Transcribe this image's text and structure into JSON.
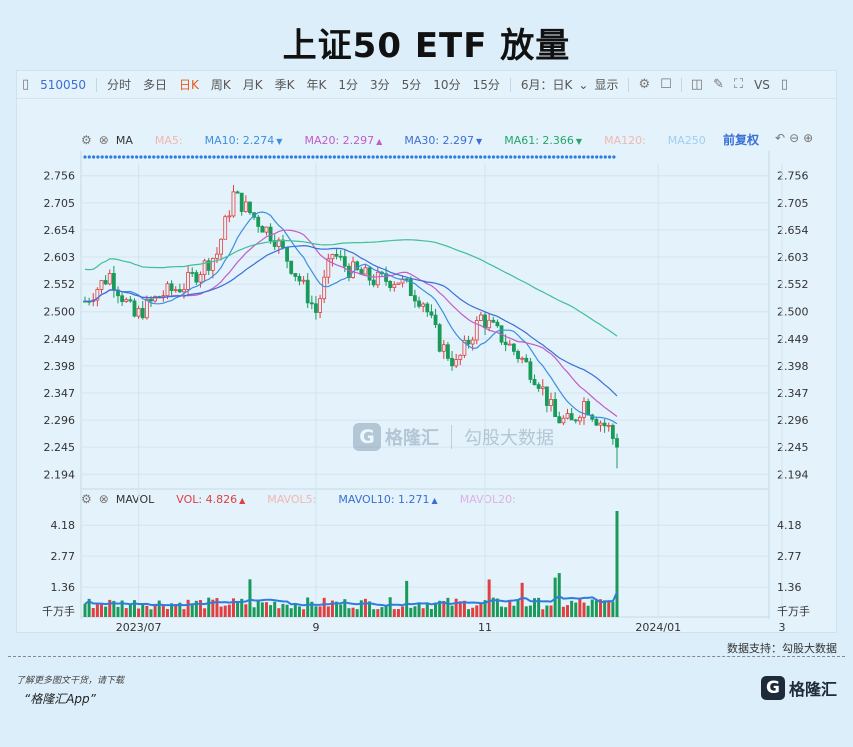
{
  "title": "上证50 ETF 放量",
  "toolbar": {
    "code": "510050",
    "periods": [
      "分时",
      "多日",
      "日K",
      "周K",
      "月K",
      "季K",
      "年K",
      "1分",
      "3分",
      "5分",
      "10分",
      "15分"
    ],
    "active_period": "日K",
    "range": "6月：日K",
    "display": "显示",
    "vs": "VS"
  },
  "indicators_top": {
    "name": "MA",
    "items": [
      {
        "label": "MA5:",
        "value": "",
        "color": "#f2b7b0",
        "arrow": ""
      },
      {
        "label": "MA10:",
        "value": "2.274",
        "color": "#3a8fe0",
        "arrow": "▼"
      },
      {
        "label": "MA20:",
        "value": "2.297",
        "color": "#c25cc8",
        "arrow": "▲"
      },
      {
        "label": "MA30:",
        "value": "2.297",
        "color": "#3a6fd8",
        "arrow": "▼"
      },
      {
        "label": "MA61:",
        "value": "2.366",
        "color": "#22a66a",
        "arrow": "▼"
      },
      {
        "label": "MA120:",
        "value": "",
        "color": "#f2b7b0",
        "arrow": ""
      },
      {
        "label": "MA250",
        "value": "",
        "color": "#9ecff0",
        "arrow": ""
      }
    ],
    "adjust": "前复权"
  },
  "indicators_vol": {
    "name": "MAVOL",
    "items": [
      {
        "label": "VOL:",
        "value": "4.826",
        "color": "#e04040",
        "arrow": "▲"
      },
      {
        "label": "MAVOL5:",
        "value": "",
        "color": "#f2b7b0",
        "arrow": ""
      },
      {
        "label": "MAVOL10:",
        "value": "1.271",
        "color": "#3a6fd8",
        "arrow": "▲"
      },
      {
        "label": "MAVOL20:",
        "value": "",
        "color": "#e0b0e4",
        "arrow": ""
      }
    ]
  },
  "chart_data": {
    "type": "candlestick",
    "price_axis_ticks": [
      2.756,
      2.705,
      2.654,
      2.603,
      2.552,
      2.5,
      2.449,
      2.398,
      2.347,
      2.296,
      2.245,
      2.194
    ],
    "price_range": [
      2.17,
      2.78
    ],
    "volume_axis_ticks": [
      "4.18",
      "2.77",
      "1.36"
    ],
    "volume_unit": "千万手",
    "volume_range": [
      0,
      4.826
    ],
    "x_tick_labels": [
      "2023/07",
      "9",
      "11",
      "2024/01",
      "3"
    ],
    "last_close": 2.245,
    "last_low": 2.205,
    "last_volume": 4.826,
    "colors": {
      "up": "#e04040",
      "down": "#1a9a5a",
      "ma10": "#3a8fe0",
      "ma20": "#c25cc8",
      "ma30": "#3a6fd8",
      "ma61": "#3fbf95",
      "mavol10": "#2d7de0"
    }
  },
  "footer": {
    "source": "数据支持：勾股大数据",
    "line1": "了解更多图文干货，请下载",
    "line2": "“格隆汇App”",
    "brand": "格隆汇",
    "brand_g": "G"
  },
  "watermark": {
    "g": "G",
    "name": "格隆汇",
    "name2": "勾股大数据"
  }
}
